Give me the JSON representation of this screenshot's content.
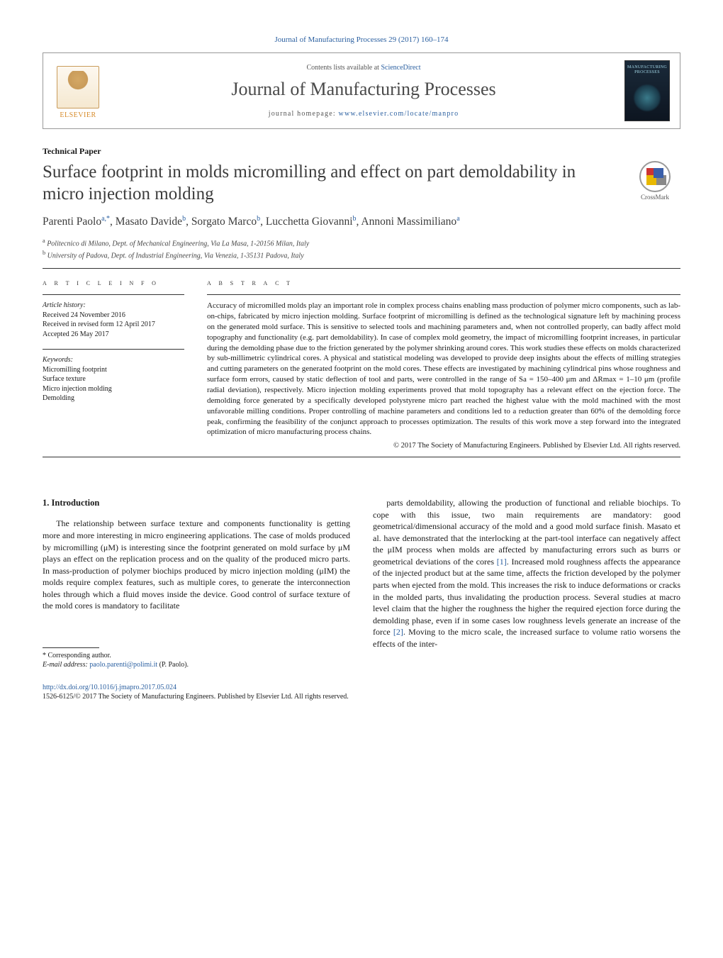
{
  "journal_ref": "Journal of Manufacturing Processes 29 (2017) 160–174",
  "header": {
    "contents_prefix": "Contents lists available at ",
    "contents_link": "ScienceDirect",
    "journal_title": "Journal of Manufacturing Processes",
    "homepage_prefix": "journal homepage: ",
    "homepage_link": "www.elsevier.com/locate/manpro",
    "publisher_logo_text": "ELSEVIER",
    "cover_text_line": "MANUFACTURING PROCESSES"
  },
  "paper_type": "Technical Paper",
  "title": "Surface footprint in molds micromilling and effect on part demoldability in micro injection molding",
  "crossmark_label": "CrossMark",
  "authors_html": "Parenti Paolo<sup>a,*</sup>, Masato Davide<sup>b</sup>, Sorgato Marco<sup>b</sup>, Lucchetta Giovanni<sup>b</sup>, Annoni Massimiliano<sup>a</sup>",
  "affiliations": [
    {
      "sup": "a",
      "text": "Politecnico di Milano, Dept. of Mechanical Engineering, Via La Masa, 1-20156 Milan, Italy"
    },
    {
      "sup": "b",
      "text": "University of Padova, Dept. of Industrial Engineering, Via Venezia, 1-35131 Padova, Italy"
    }
  ],
  "article_info": {
    "heading": "a r t i c l e   i n f o",
    "history_label": "Article history:",
    "history": [
      "Received 24 November 2016",
      "Received in revised form 12 April 2017",
      "Accepted 26 May 2017"
    ],
    "keywords_label": "Keywords:",
    "keywords": [
      "Micromilling footprint",
      "Surface texture",
      "Micro injection molding",
      "Demolding"
    ]
  },
  "abstract": {
    "heading": "a b s t r a c t",
    "text": "Accuracy of micromilled molds play an important role in complex process chains enabling mass production of polymer micro components, such as lab-on-chips, fabricated by micro injection molding. Surface footprint of micromilling is defined as the technological signature left by machining process on the generated mold surface. This is sensitive to selected tools and machining parameters and, when not controlled properly, can badly affect mold topography and functionality (e.g. part demoldability). In case of complex mold geometry, the impact of micromilling footprint increases, in particular during the demolding phase due to the friction generated by the polymer shrinking around cores. This work studies these effects on molds characterized by sub-millimetric cylindrical cores. A physical and statistical modeling was developed to provide deep insights about the effects of milling strategies and cutting parameters on the generated footprint on the mold cores. These effects are investigated by machining cylindrical pins whose roughness and surface form errors, caused by static deflection of tool and parts, were controlled in the range of Sa = 150–400 μm and ΔRmax = 1–10 μm (profile radial deviation), respectively. Micro injection molding experiments proved that mold topography has a relevant effect on the ejection force. The demolding force generated by a specifically developed polystyrene micro part reached the highest value with the mold machined with the most unfavorable milling conditions. Proper controlling of machine parameters and conditions led to a reduction greater than 60% of the demolding force peak, confirming the feasibility of the conjunct approach to processes optimization. The results of this work move a step forward into the integrated optimization of micro manufacturing process chains.",
    "copyright": "© 2017 The Society of Manufacturing Engineers. Published by Elsevier Ltd. All rights reserved."
  },
  "body": {
    "section_num": "1.",
    "section_title": "Introduction",
    "col1": "The relationship between surface texture and components functionality is getting more and more interesting in micro engineering applications. The case of molds produced by micromilling (μM) is interesting since the footprint generated on mold surface by μM plays an effect on the replication process and on the quality of the produced micro parts. In mass-production of polymer biochips produced by micro injection molding (μIM) the molds require complex features, such as multiple cores, to generate the interconnection holes through which a fluid moves inside the device. Good control of surface texture of the mold cores is mandatory to facilitate",
    "col2_p1": "parts demoldability, allowing the production of functional and reliable biochips. To cope with this issue, two main requirements are mandatory: good geometrical/dimensional accuracy of the mold and a good mold surface finish. Masato et al. have demonstrated that the interlocking at the part-tool interface can negatively affect the μIM process when molds are affected by manufacturing errors such as burrs or geometrical deviations of the cores ",
    "ref1": "[1]",
    "col2_p2": ". Increased mold roughness affects the appearance of the injected product but at the same time, affects the friction developed by the polymer parts when ejected from the mold. This increases the risk to induce deformations or cracks in the molded parts, thus invalidating the production process. Several studies at macro level claim that the higher the roughness the higher the required ejection force during the demolding phase, even if in some cases low roughness levels generate an increase of the force ",
    "ref2": "[2]",
    "col2_p3": ". Moving to the micro scale, the increased surface to volume ratio worsens the effects of the inter-"
  },
  "footnotes": {
    "corr_label": "* Corresponding author.",
    "email_label": "E-mail address: ",
    "email": "paolo.parenti@polimi.it",
    "email_suffix": " (P. Paolo)."
  },
  "doi": {
    "link": "http://dx.doi.org/10.1016/j.jmapro.2017.05.024",
    "issn_line": "1526-6125/© 2017 The Society of Manufacturing Engineers. Published by Elsevier Ltd. All rights reserved."
  },
  "colors": {
    "link": "#2a5fa0",
    "text": "#1a1a1a",
    "heading": "#3b3b3b",
    "elsevier_orange": "#d78b2a",
    "rule": "#333333"
  },
  "typography": {
    "body_fontsize_pt": 9,
    "title_fontsize_pt": 19,
    "journal_title_fontsize_pt": 20,
    "abstract_fontsize_pt": 8.5
  }
}
